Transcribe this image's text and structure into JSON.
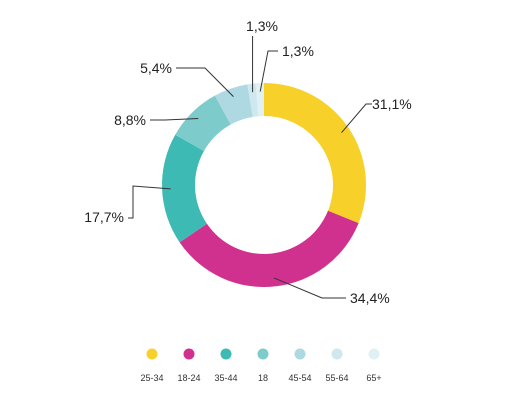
{
  "chart_data": {
    "type": "pie",
    "categories": [
      "25-34",
      "18-24",
      "35-44",
      "18",
      "45-54",
      "55-64",
      "65+"
    ],
    "values": [
      31.1,
      34.4,
      17.7,
      8.8,
      5.4,
      1.3,
      1.3
    ],
    "value_labels": [
      "31,1%",
      "34,4%",
      "17,7%",
      "8,8%",
      "5,4%",
      "1,3%",
      "1,3%"
    ],
    "colors": [
      "#f7d12a",
      "#d0318e",
      "#3dbab3",
      "#7ecbcb",
      "#aed8e2",
      "#cfe8ee",
      "#e1f0f2"
    ],
    "legend_position": "bottom",
    "donut": true
  }
}
